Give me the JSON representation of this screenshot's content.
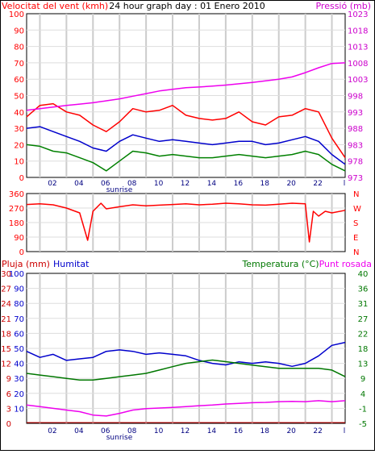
{
  "chart_data": [
    {
      "type": "line",
      "title": "24 hour graph day : 01 Enero 2010",
      "left_axis_label": "Velocitat del vent (kmh)",
      "right_axis_label": "Pressió (mb)",
      "x_ticks": [
        "02",
        "04",
        "06",
        "08",
        "10",
        "12",
        "14",
        "16",
        "18",
        "20",
        "22",
        "l"
      ],
      "x_note": "sunrise",
      "y_left_ticks": [
        "0",
        "10",
        "20",
        "30",
        "40",
        "50",
        "60",
        "70",
        "80",
        "90",
        "100"
      ],
      "y_right_ticks": [
        "973",
        "978",
        "983",
        "988",
        "993",
        "998",
        "1003",
        "1008",
        "1013",
        "1018",
        "1023"
      ],
      "y_left_range": [
        0,
        100
      ],
      "y_right_range": [
        973,
        1023
      ],
      "colors": {
        "gust": "#ff0000",
        "average": "#0000cc",
        "low": "#008000",
        "pressure": "#ee00ee",
        "left_axis": "#ff0000",
        "right_axis": "#cc00cc"
      },
      "series": [
        {
          "key": "gust",
          "x": [
            0,
            1,
            2,
            3,
            4,
            5,
            6,
            7,
            8,
            9,
            10,
            11,
            12,
            13,
            14,
            15,
            16,
            17,
            18,
            19,
            20,
            21,
            22,
            23,
            24
          ],
          "values": [
            37,
            44,
            45,
            40,
            38,
            32,
            28,
            34,
            42,
            40,
            41,
            44,
            38,
            36,
            35,
            36,
            40,
            34,
            32,
            37,
            38,
            42,
            40,
            24,
            12
          ]
        },
        {
          "key": "average",
          "x": [
            0,
            1,
            2,
            3,
            4,
            5,
            6,
            7,
            8,
            9,
            10,
            11,
            12,
            13,
            14,
            15,
            16,
            17,
            18,
            19,
            20,
            21,
            22,
            23,
            24
          ],
          "values": [
            30,
            31,
            28,
            25,
            22,
            18,
            16,
            22,
            26,
            24,
            22,
            23,
            22,
            21,
            20,
            21,
            22,
            22,
            20,
            21,
            23,
            25,
            22,
            14,
            8
          ]
        },
        {
          "key": "low",
          "x": [
            0,
            1,
            2,
            3,
            4,
            5,
            6,
            7,
            8,
            9,
            10,
            11,
            12,
            13,
            14,
            15,
            16,
            17,
            18,
            19,
            20,
            21,
            22,
            23,
            24
          ],
          "values": [
            20,
            19,
            16,
            15,
            12,
            9,
            4,
            10,
            16,
            15,
            13,
            14,
            13,
            12,
            12,
            13,
            14,
            13,
            12,
            13,
            14,
            16,
            14,
            8,
            4
          ]
        },
        {
          "key": "pressure",
          "x": [
            0,
            1,
            2,
            3,
            4,
            5,
            6,
            7,
            8,
            9,
            10,
            11,
            12,
            13,
            14,
            15,
            16,
            17,
            18,
            19,
            20,
            21,
            22,
            23,
            24
          ],
          "values": [
            993.5,
            994,
            994.5,
            995,
            995.4,
            995.8,
            996.4,
            997,
            997.8,
            998.6,
            999.4,
            999.9,
            1000.4,
            1000.6,
            1000.9,
            1001.2,
            1001.6,
            1002,
            1002.5,
            1003,
            1003.7,
            1005,
            1006.5,
            1007.8,
            1008
          ]
        }
      ]
    },
    {
      "type": "line",
      "y_left_ticks": [
        "360",
        "270",
        "180",
        "90",
        "0"
      ],
      "y_left_range": [
        0,
        360
      ],
      "y_right_ticks": [
        "N",
        "W",
        "S",
        "E",
        "N"
      ],
      "colors": {
        "direction": "#ff0000"
      },
      "series": [
        {
          "key": "direction",
          "x": [
            0,
            1,
            2,
            3,
            4,
            4.6,
            5,
            5.6,
            6,
            7,
            8,
            9,
            10,
            11,
            12,
            13,
            14,
            15,
            16,
            17,
            18,
            19,
            20,
            21,
            21.3,
            21.6,
            22,
            22.5,
            23,
            24
          ],
          "values": [
            292,
            296,
            290,
            270,
            240,
            70,
            250,
            300,
            265,
            278,
            290,
            284,
            288,
            292,
            296,
            290,
            294,
            300,
            296,
            290,
            288,
            294,
            300,
            296,
            60,
            250,
            220,
            250,
            240,
            256
          ]
        }
      ]
    },
    {
      "type": "line",
      "left_axis_label_1": "Pluja (mm)",
      "left_axis_label_2": "Humitat",
      "right_axis_label_1": "Temperatura (°C)",
      "right_axis_label_2": "Punt rosada",
      "y_left_ticks_1": [
        "0",
        "3",
        "6",
        "9",
        "12",
        "15",
        "18",
        "21",
        "24",
        "27",
        "30"
      ],
      "y_left_ticks_2": [
        "10",
        "20",
        "30",
        "40",
        "50",
        "60",
        "70",
        "80",
        "90",
        "100"
      ],
      "y_left_range_2": [
        0,
        100
      ],
      "y_right_ticks": [
        "-5",
        "-1",
        "4",
        "9",
        "13",
        "18",
        "22",
        "27",
        "31",
        "36",
        "40"
      ],
      "y_right_range": [
        -5,
        40
      ],
      "colors": {
        "rain_label": "#cc0000",
        "humidity": "#0000cc",
        "temperature": "#007700",
        "dewpoint": "#ee00ee",
        "rain": "#cc0000"
      },
      "series": [
        {
          "key": "humidity",
          "x": [
            0,
            1,
            2,
            3,
            4,
            5,
            6,
            7,
            8,
            9,
            10,
            11,
            12,
            13,
            14,
            15,
            16,
            17,
            18,
            19,
            20,
            21,
            22,
            23,
            24
          ],
          "values": [
            48,
            44,
            46,
            42,
            43,
            44,
            48,
            49,
            48,
            46,
            47,
            46,
            45,
            42,
            40,
            39,
            41,
            40,
            41,
            40,
            38,
            40,
            45,
            52,
            54
          ]
        },
        {
          "key": "temperature",
          "x": [
            0,
            1,
            2,
            3,
            4,
            5,
            6,
            7,
            8,
            9,
            10,
            11,
            12,
            13,
            14,
            15,
            16,
            17,
            18,
            19,
            20,
            21,
            22,
            23,
            24
          ],
          "values": [
            10,
            9.5,
            9,
            8.5,
            8,
            8,
            8.5,
            9,
            9.5,
            10,
            11,
            12,
            13,
            13.5,
            14,
            13.5,
            13,
            12.5,
            12,
            11.5,
            11.5,
            11.5,
            11.5,
            11,
            9
          ]
        },
        {
          "key": "dewpoint",
          "x": [
            0,
            1,
            2,
            3,
            4,
            5,
            6,
            7,
            8,
            9,
            10,
            11,
            12,
            13,
            14,
            15,
            16,
            17,
            18,
            19,
            20,
            21,
            22,
            23,
            24
          ],
          "values": [
            0.5,
            0,
            -0.5,
            -1,
            -1.5,
            -2.5,
            -2.8,
            -2,
            -1,
            -0.6,
            -0.4,
            -0.2,
            0,
            0.3,
            0.5,
            0.8,
            1,
            1.2,
            1.3,
            1.5,
            1.6,
            1.5,
            1.8,
            1.5,
            1.8
          ]
        },
        {
          "key": "rain",
          "x": [
            0,
            24
          ],
          "values": [
            0,
            0
          ]
        }
      ]
    }
  ]
}
